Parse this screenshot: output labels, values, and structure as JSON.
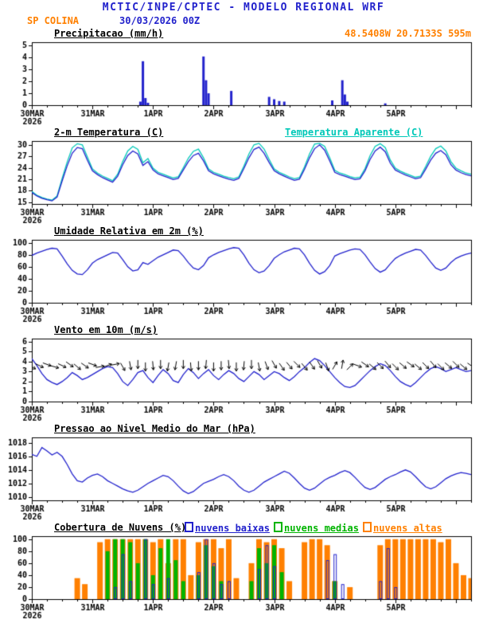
{
  "header": {
    "title": "MCTIC/INPE/CPTEC - MODELO REGIONAL WRF",
    "station": "SP COLINA",
    "run": "30/03/2026 00Z",
    "location": "48.5408W 20.7133S 595m"
  },
  "colors": {
    "blue": "#2222cc",
    "orange": "#ff8000",
    "cyan": "#00c8b8",
    "green": "#00b400",
    "black": "#000000"
  },
  "x_axis": {
    "hours_max": 174,
    "major_every": 24,
    "minor_every": 6,
    "day_labels": [
      "30MAR",
      "31MAR",
      "1APR",
      "2APR",
      "3APR",
      "4APR",
      "5APR"
    ],
    "year_label": "2026"
  },
  "chart_data": [
    {
      "id": "precipitation",
      "type": "bar",
      "title": "Precipitacao (mm/h)",
      "color": "blue",
      "ylim": [
        0,
        5.3
      ],
      "yticks": [
        0,
        1,
        2,
        3,
        4,
        5
      ],
      "bars": [
        [
          43,
          0.3
        ],
        [
          44,
          3.7
        ],
        [
          45,
          0.6
        ],
        [
          46,
          0.2
        ],
        [
          68,
          4.1
        ],
        [
          69,
          2.1
        ],
        [
          70,
          1.0
        ],
        [
          79,
          1.2
        ],
        [
          94,
          0.7
        ],
        [
          96,
          0.5
        ],
        [
          98,
          0.35
        ],
        [
          100,
          0.3
        ],
        [
          119,
          0.4
        ],
        [
          123,
          2.1
        ],
        [
          124,
          0.9
        ],
        [
          125,
          0.3
        ],
        [
          140,
          0.15
        ]
      ]
    },
    {
      "id": "temperature",
      "type": "line",
      "title": "2-m Temperatura (C)",
      "right_title": "Temperatura Aparente (C)",
      "ylim": [
        14.5,
        31
      ],
      "yticks": [
        15,
        18,
        21,
        24,
        27,
        30
      ],
      "series": [
        {
          "name": "Temperatura Aparente (C)",
          "color": "cyan",
          "step": 2,
          "values": [
            17.8,
            16.8,
            16.2,
            15.8,
            15.5,
            16.6,
            21.2,
            25.5,
            29.2,
            30.3,
            30.0,
            26.8,
            23.7,
            22.6,
            21.8,
            21.2,
            20.6,
            22.3,
            25.6,
            28.4,
            29.6,
            28.8,
            25.3,
            26.4,
            23.9,
            22.8,
            22.3,
            21.8,
            21.3,
            21.6,
            24.0,
            26.5,
            28.3,
            28.9,
            26.6,
            23.7,
            22.8,
            22.3,
            21.8,
            21.4,
            21.1,
            21.6,
            24.4,
            27.6,
            30.0,
            30.4,
            28.9,
            26.2,
            23.7,
            22.8,
            22.2,
            21.6,
            21.1,
            21.4,
            24.2,
            27.6,
            30.2,
            30.4,
            29.6,
            26.6,
            23.3,
            22.6,
            22.2,
            21.7,
            21.3,
            21.5,
            23.8,
            27.2,
            29.6,
            30.3,
            29.3,
            26.0,
            23.9,
            23.1,
            22.5,
            22.0,
            21.5,
            21.8,
            24.3,
            27.0,
            29.0,
            29.7,
            28.4,
            25.6,
            23.9,
            23.2,
            22.6,
            22.3
          ]
        },
        {
          "name": "2-m Temperatura (C)",
          "color": "blue",
          "step": 2,
          "values": [
            17.5,
            16.6,
            16.0,
            15.6,
            15.3,
            16.3,
            20.5,
            24.5,
            27.8,
            29.3,
            29.0,
            26.0,
            23.2,
            22.2,
            21.4,
            20.8,
            20.2,
            21.8,
            24.8,
            27.2,
            28.4,
            27.6,
            24.6,
            25.6,
            23.4,
            22.4,
            21.9,
            21.4,
            20.9,
            21.2,
            23.4,
            25.6,
            27.2,
            27.8,
            25.8,
            23.2,
            22.4,
            21.9,
            21.4,
            21.0,
            20.7,
            21.2,
            23.8,
            26.6,
            28.8,
            29.4,
            27.8,
            25.4,
            23.2,
            22.4,
            21.8,
            21.2,
            20.7,
            21.0,
            23.6,
            26.6,
            29.0,
            30.0,
            28.6,
            25.8,
            22.8,
            22.2,
            21.8,
            21.3,
            20.9,
            21.1,
            23.2,
            26.2,
            28.4,
            29.4,
            28.2,
            25.2,
            23.4,
            22.7,
            22.1,
            21.6,
            21.1,
            21.4,
            23.6,
            26.0,
            27.8,
            28.5,
            27.4,
            24.8,
            23.4,
            22.7,
            22.2,
            21.9
          ]
        }
      ]
    },
    {
      "id": "humidity",
      "type": "line",
      "title": "Umidade Relativa em 2m (%)",
      "ylim": [
        0,
        105
      ],
      "yticks": [
        0,
        20,
        40,
        60,
        80,
        100
      ],
      "series": [
        {
          "name": "Umidade Relativa em 2m (%)",
          "color": "blue",
          "step": 2,
          "values": [
            79,
            83,
            86,
            89,
            91,
            90,
            78,
            65,
            54,
            48,
            47,
            55,
            66,
            72,
            76,
            80,
            84,
            83,
            72,
            60,
            53,
            55,
            67,
            64,
            70,
            76,
            80,
            84,
            88,
            87,
            78,
            67,
            58,
            55,
            62,
            75,
            80,
            84,
            87,
            90,
            92,
            91,
            80,
            66,
            55,
            50,
            53,
            62,
            74,
            80,
            85,
            88,
            91,
            90,
            80,
            66,
            54,
            48,
            52,
            62,
            78,
            82,
            85,
            88,
            90,
            89,
            80,
            68,
            57,
            51,
            55,
            65,
            74,
            79,
            83,
            86,
            89,
            88,
            79,
            68,
            58,
            54,
            58,
            67,
            74,
            78,
            81,
            83
          ]
        }
      ]
    },
    {
      "id": "wind",
      "type": "wind",
      "title": "Vento em 10m (m/s)",
      "ylim": [
        0,
        6.3
      ],
      "yticks": [
        0,
        1,
        2,
        3,
        4,
        5,
        6
      ],
      "series": [
        {
          "name": "Vento em 10m (m/s)",
          "color": "blue",
          "step": 2,
          "values": [
            4.3,
            3.6,
            2.8,
            2.2,
            1.9,
            1.7,
            2.0,
            2.4,
            2.9,
            2.6,
            2.2,
            2.4,
            2.7,
            3.0,
            3.3,
            3.5,
            3.4,
            2.8,
            2.0,
            1.6,
            2.2,
            2.9,
            3.1,
            2.4,
            1.9,
            2.6,
            3.2,
            2.8,
            2.1,
            1.9,
            2.7,
            3.3,
            2.9,
            2.3,
            2.8,
            3.2,
            2.6,
            2.2,
            2.7,
            3.1,
            2.8,
            2.3,
            2.0,
            2.5,
            3.0,
            2.7,
            2.2,
            2.6,
            3.0,
            2.8,
            2.4,
            2.1,
            2.5,
            3.0,
            3.4,
            3.9,
            4.3,
            4.1,
            3.6,
            3.0,
            2.4,
            1.9,
            1.5,
            1.4,
            1.6,
            2.1,
            2.6,
            3.1,
            3.5,
            3.8,
            3.6,
            3.1,
            2.5,
            2.0,
            1.7,
            1.5,
            1.9,
            2.4,
            2.9,
            3.3,
            3.5,
            3.3,
            3.0,
            3.2,
            3.4,
            3.2,
            3.0,
            3.1
          ]
        }
      ],
      "arrows": {
        "y": 3.6,
        "step": 3,
        "angles_deg": [
          -30,
          -25,
          -20,
          -15,
          -25,
          -35,
          -40,
          -35,
          -20,
          10,
          20,
          10,
          -60,
          -80,
          -90,
          -90,
          -85,
          -90,
          -100,
          -100,
          -90,
          -85,
          -90,
          -95,
          -90,
          -90,
          -85,
          -90,
          -95,
          -90,
          -80,
          -70,
          -60,
          -55,
          -50,
          -45,
          -50,
          -55,
          -60,
          -70,
          60,
          80,
          45,
          -20,
          -35,
          -40,
          -45,
          -50,
          -45,
          -40,
          -35,
          -40,
          -45,
          -50,
          -45,
          -40,
          -45,
          -40,
          -35
        ]
      }
    },
    {
      "id": "pressure",
      "type": "line",
      "title": "Pressao ao Nivel Medio do Mar (hPa)",
      "ylim": [
        1009.5,
        1018.8
      ],
      "yticks": [
        1010,
        1012,
        1014,
        1016,
        1018
      ],
      "series": [
        {
          "name": "Pressao ao Nivel Medio do Mar (hPa)",
          "color": "blue",
          "step": 2,
          "values": [
            1016.3,
            1016.0,
            1017.3,
            1016.8,
            1016.2,
            1016.6,
            1016.0,
            1014.8,
            1013.4,
            1012.4,
            1012.2,
            1012.8,
            1013.2,
            1013.4,
            1013.0,
            1012.4,
            1012.0,
            1011.6,
            1011.2,
            1010.9,
            1010.7,
            1011.0,
            1011.5,
            1012.0,
            1012.4,
            1012.8,
            1013.2,
            1013.0,
            1012.4,
            1011.6,
            1010.9,
            1010.5,
            1010.8,
            1011.4,
            1012.0,
            1012.3,
            1012.6,
            1013.0,
            1013.3,
            1013.0,
            1012.4,
            1011.6,
            1011.0,
            1010.7,
            1011.0,
            1011.6,
            1012.2,
            1012.6,
            1013.0,
            1013.4,
            1013.8,
            1013.5,
            1012.8,
            1012.0,
            1011.3,
            1011.0,
            1011.3,
            1011.9,
            1012.5,
            1012.9,
            1013.2,
            1013.6,
            1013.9,
            1013.6,
            1012.9,
            1012.1,
            1011.4,
            1011.1,
            1011.4,
            1012.0,
            1012.6,
            1013.0,
            1013.3,
            1013.7,
            1014.0,
            1013.7,
            1013.0,
            1012.2,
            1011.5,
            1011.2,
            1011.5,
            1012.1,
            1012.7,
            1013.1,
            1013.4,
            1013.6,
            1013.5,
            1013.3
          ]
        }
      ]
    },
    {
      "id": "clouds",
      "type": "cloudbar",
      "title": "Cobertura de Nuvens (%)",
      "ylim": [
        0,
        105
      ],
      "yticks": [
        0,
        20,
        40,
        60,
        80,
        100
      ],
      "legend": [
        {
          "label": "nuvens baixas",
          "color": "blue"
        },
        {
          "label": "nuvens medias",
          "color": "green"
        },
        {
          "label": "nuvens altas",
          "color": "orange"
        }
      ],
      "series": [
        {
          "name": "nuvens altas",
          "color": "orange",
          "fill": true,
          "width": 7,
          "step": 3,
          "values": [
            0,
            0,
            0,
            0,
            0,
            0,
            35,
            25,
            0,
            95,
            100,
            100,
            100,
            100,
            100,
            100,
            95,
            100,
            60,
            100,
            100,
            40,
            95,
            100,
            100,
            85,
            100,
            35,
            0,
            60,
            100,
            95,
            100,
            85,
            30,
            0,
            95,
            100,
            100,
            90,
            30,
            0,
            20,
            0,
            0,
            0,
            90,
            100,
            100,
            100,
            100,
            100,
            100,
            100,
            95,
            100,
            60,
            40,
            35
          ]
        },
        {
          "name": "nuvens medias",
          "color": "green",
          "fill": true,
          "width": 5,
          "step": 3,
          "values": [
            0,
            0,
            0,
            0,
            0,
            0,
            0,
            0,
            0,
            0,
            80,
            100,
            100,
            95,
            60,
            100,
            40,
            85,
            100,
            65,
            30,
            0,
            40,
            90,
            55,
            30,
            0,
            0,
            0,
            30,
            85,
            60,
            90,
            45,
            0,
            0,
            0,
            0,
            0,
            0,
            30,
            0,
            0,
            0,
            0,
            0,
            0,
            0,
            0,
            0,
            0,
            0,
            0,
            0,
            0,
            0,
            0,
            0,
            0
          ]
        },
        {
          "name": "nuvens baixas",
          "color": "blue",
          "fill": false,
          "width": 3,
          "step": 3,
          "values": [
            0,
            0,
            0,
            0,
            0,
            0,
            0,
            0,
            0,
            0,
            0,
            20,
            75,
            30,
            0,
            100,
            25,
            0,
            35,
            0,
            0,
            0,
            45,
            100,
            60,
            25,
            30,
            0,
            0,
            0,
            50,
            90,
            55,
            0,
            0,
            0,
            0,
            0,
            0,
            65,
            75,
            25,
            0,
            0,
            0,
            0,
            30,
            85,
            20,
            0,
            0,
            0,
            0,
            0,
            0,
            0,
            0,
            0,
            0
          ]
        }
      ]
    }
  ]
}
